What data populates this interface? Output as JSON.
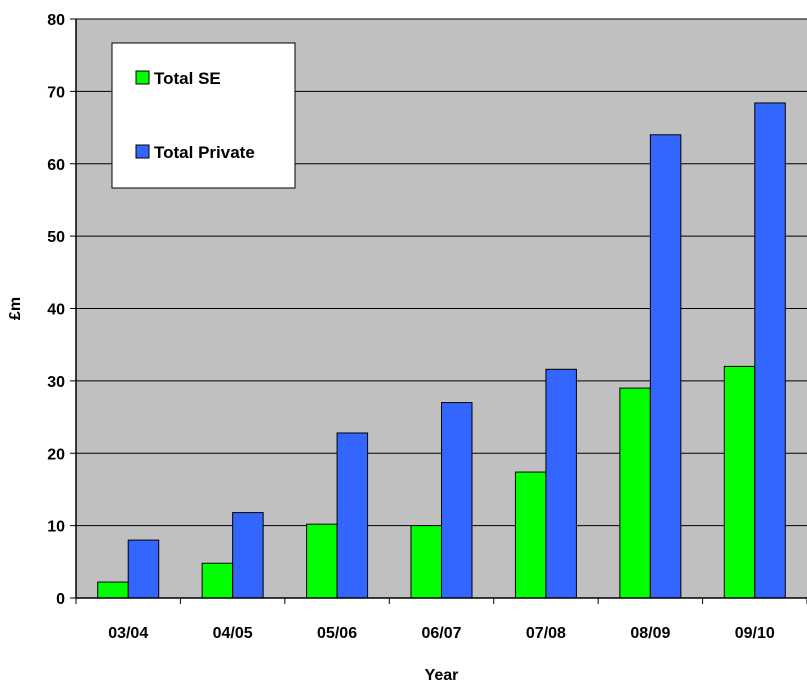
{
  "chart_data": {
    "type": "bar",
    "title": "",
    "xlabel": "Year",
    "ylabel": "£m",
    "categories": [
      "03/04",
      "04/05",
      "05/06",
      "06/07",
      "07/08",
      "08/09",
      "09/10"
    ],
    "series": [
      {
        "name": "Total SE",
        "color": "#00ff00",
        "values": [
          2.2,
          4.8,
          10.2,
          10.0,
          17.4,
          29.0,
          32.0
        ]
      },
      {
        "name": "Total Private",
        "color": "#3366ff",
        "values": [
          8.0,
          11.8,
          22.8,
          27.0,
          31.6,
          64.0,
          68.4
        ]
      }
    ],
    "ylim": [
      0,
      80
    ],
    "yticks": [
      "0",
      "10",
      "20",
      "30",
      "40",
      "50",
      "60",
      "70",
      "80"
    ],
    "grid": true,
    "plot_background": "#c0c0c0",
    "legend_position": "top-left"
  }
}
